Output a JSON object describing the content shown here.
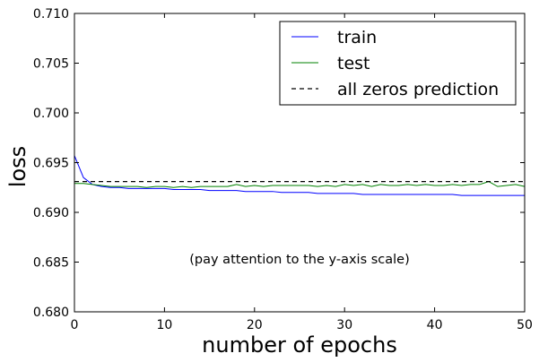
{
  "chart_data": {
    "type": "line",
    "title": "",
    "xlabel": "number of epochs",
    "ylabel": "loss",
    "xlim": [
      0,
      50
    ],
    "ylim": [
      0.68,
      0.71
    ],
    "x_ticks": [
      0,
      10,
      20,
      30,
      40,
      50
    ],
    "x_tick_labels": [
      "0",
      "10",
      "20",
      "30",
      "40",
      "50"
    ],
    "y_ticks": [
      0.68,
      0.685,
      0.69,
      0.695,
      0.7,
      0.705,
      0.71
    ],
    "y_tick_labels": [
      "0.680",
      "0.685",
      "0.690",
      "0.695",
      "0.700",
      "0.705",
      "0.710"
    ],
    "grid": false,
    "legend_position": "top-right",
    "annotation": "(pay attention to the y-axis scale)",
    "series": [
      {
        "name": "train",
        "color": "#0000ff",
        "style": "solid",
        "x": [
          0,
          1,
          2,
          3,
          4,
          5,
          6,
          7,
          8,
          9,
          10,
          11,
          12,
          13,
          14,
          15,
          16,
          17,
          18,
          19,
          20,
          21,
          22,
          23,
          24,
          25,
          26,
          27,
          28,
          29,
          30,
          31,
          32,
          33,
          34,
          35,
          36,
          37,
          38,
          39,
          40,
          41,
          42,
          43,
          44,
          45,
          46,
          47,
          48,
          49,
          50
        ],
        "y": [
          0.6957,
          0.6935,
          0.6928,
          0.6926,
          0.6925,
          0.6925,
          0.6924,
          0.6924,
          0.6924,
          0.6924,
          0.6924,
          0.6923,
          0.6923,
          0.6923,
          0.6923,
          0.6922,
          0.6922,
          0.6922,
          0.6922,
          0.6921,
          0.6921,
          0.6921,
          0.6921,
          0.692,
          0.692,
          0.692,
          0.692,
          0.6919,
          0.6919,
          0.6919,
          0.6919,
          0.6919,
          0.6918,
          0.6918,
          0.6918,
          0.6918,
          0.6918,
          0.6918,
          0.6918,
          0.6918,
          0.6918,
          0.6918,
          0.6918,
          0.6917,
          0.6917,
          0.6917,
          0.6917,
          0.6917,
          0.6917,
          0.6917,
          0.6917
        ]
      },
      {
        "name": "test",
        "color": "#008000",
        "style": "solid",
        "x": [
          0,
          1,
          2,
          3,
          4,
          5,
          6,
          7,
          8,
          9,
          10,
          11,
          12,
          13,
          14,
          15,
          16,
          17,
          18,
          19,
          20,
          21,
          22,
          23,
          24,
          25,
          26,
          27,
          28,
          29,
          30,
          31,
          32,
          33,
          34,
          35,
          36,
          37,
          38,
          39,
          40,
          41,
          42,
          43,
          44,
          45,
          46,
          47,
          48,
          49,
          50
        ],
        "y": [
          0.6929,
          0.6929,
          0.6928,
          0.6927,
          0.6926,
          0.6926,
          0.6926,
          0.6926,
          0.6925,
          0.6926,
          0.6926,
          0.6925,
          0.6926,
          0.6925,
          0.6926,
          0.6926,
          0.6926,
          0.6926,
          0.6928,
          0.6926,
          0.6927,
          0.6926,
          0.6927,
          0.6927,
          0.6927,
          0.6927,
          0.6927,
          0.6926,
          0.6927,
          0.6926,
          0.6928,
          0.6927,
          0.6928,
          0.6926,
          0.6928,
          0.6927,
          0.6927,
          0.6928,
          0.6927,
          0.6928,
          0.6927,
          0.6927,
          0.6928,
          0.6927,
          0.6928,
          0.6928,
          0.6931,
          0.6926,
          0.6927,
          0.6928,
          0.6926
        ]
      },
      {
        "name": "all zeros prediction",
        "color": "#000000",
        "style": "dashed",
        "x": [
          0,
          50
        ],
        "y": [
          0.6931,
          0.6931
        ]
      }
    ]
  }
}
